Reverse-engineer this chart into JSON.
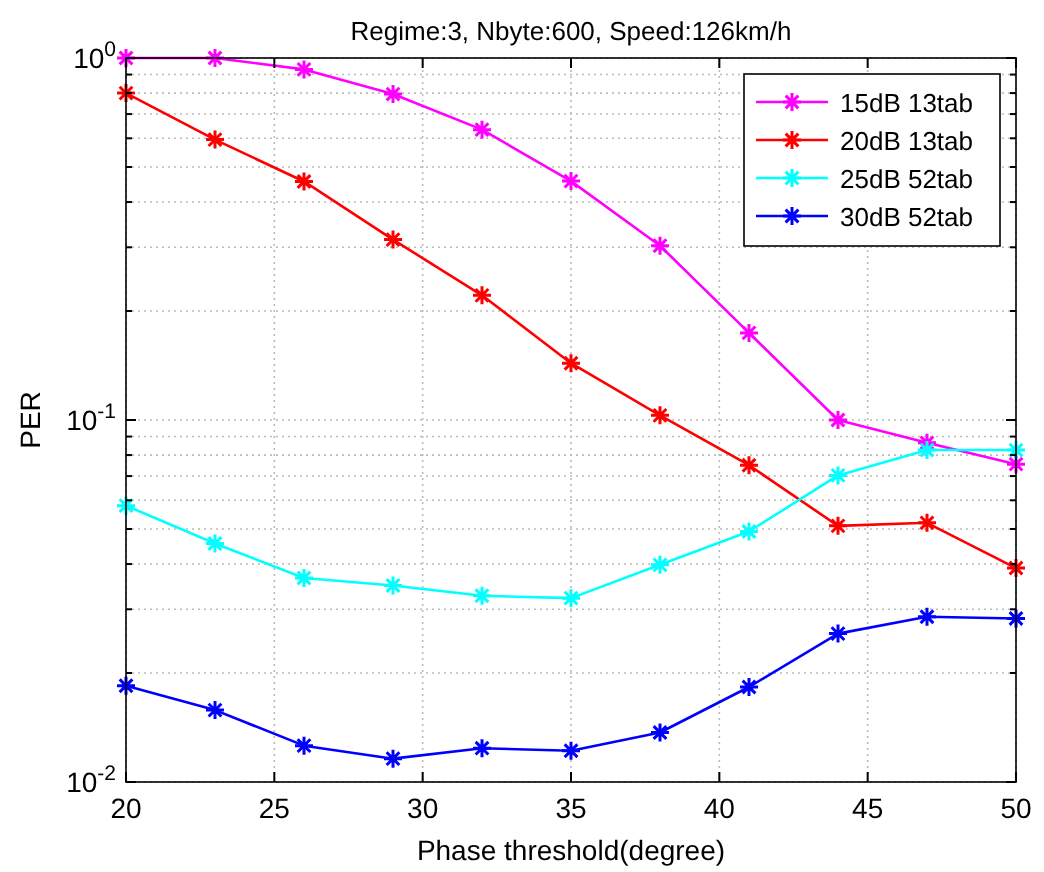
{
  "chart_data": {
    "type": "line",
    "title": "Regime:3, Nbyte:600, Speed:126km/h",
    "xlabel": "Phase threshold(degree)",
    "ylabel": "PER",
    "x": [
      20,
      23,
      26,
      29,
      32,
      35,
      38,
      41,
      44,
      47,
      50
    ],
    "series": [
      {
        "name": "15dB 13tab",
        "color": "#ff00ff",
        "values": [
          1.0,
          1.0,
          0.93,
          0.795,
          0.634,
          0.457,
          0.303,
          0.174,
          0.1,
          0.0865,
          0.0755
        ]
      },
      {
        "name": "20dB 13tab",
        "color": "#ff0000",
        "values": [
          0.8,
          0.595,
          0.456,
          0.315,
          0.221,
          0.1435,
          0.103,
          0.075,
          0.051,
          0.052,
          0.039
        ]
      },
      {
        "name": "25dB 52tab",
        "color": "#00ffff",
        "values": [
          0.058,
          0.0456,
          0.0366,
          0.0349,
          0.0327,
          0.0322,
          0.0398,
          0.0492,
          0.0703,
          0.0826,
          0.0826
        ]
      },
      {
        "name": "30dB 52tab",
        "color": "#0000ff",
        "values": [
          0.01845,
          0.0158,
          0.0126,
          0.0116,
          0.0124,
          0.0122,
          0.0137,
          0.0183,
          0.0257,
          0.0286,
          0.0283
        ]
      }
    ],
    "xlim": [
      20,
      50
    ],
    "xticks": [
      20,
      25,
      30,
      35,
      40,
      45,
      50
    ],
    "ylim": [
      0.01,
      1
    ],
    "yticks": [
      {
        "value": 0.01,
        "label": "10$^{-2}$"
      },
      {
        "value": 0.1,
        "label": "10$^{-1}$"
      },
      {
        "value": 1,
        "label": "10$^{0}$"
      }
    ],
    "log": "y",
    "grid": true,
    "legend": "top right",
    "marker": "cross",
    "line_style": "solid"
  }
}
